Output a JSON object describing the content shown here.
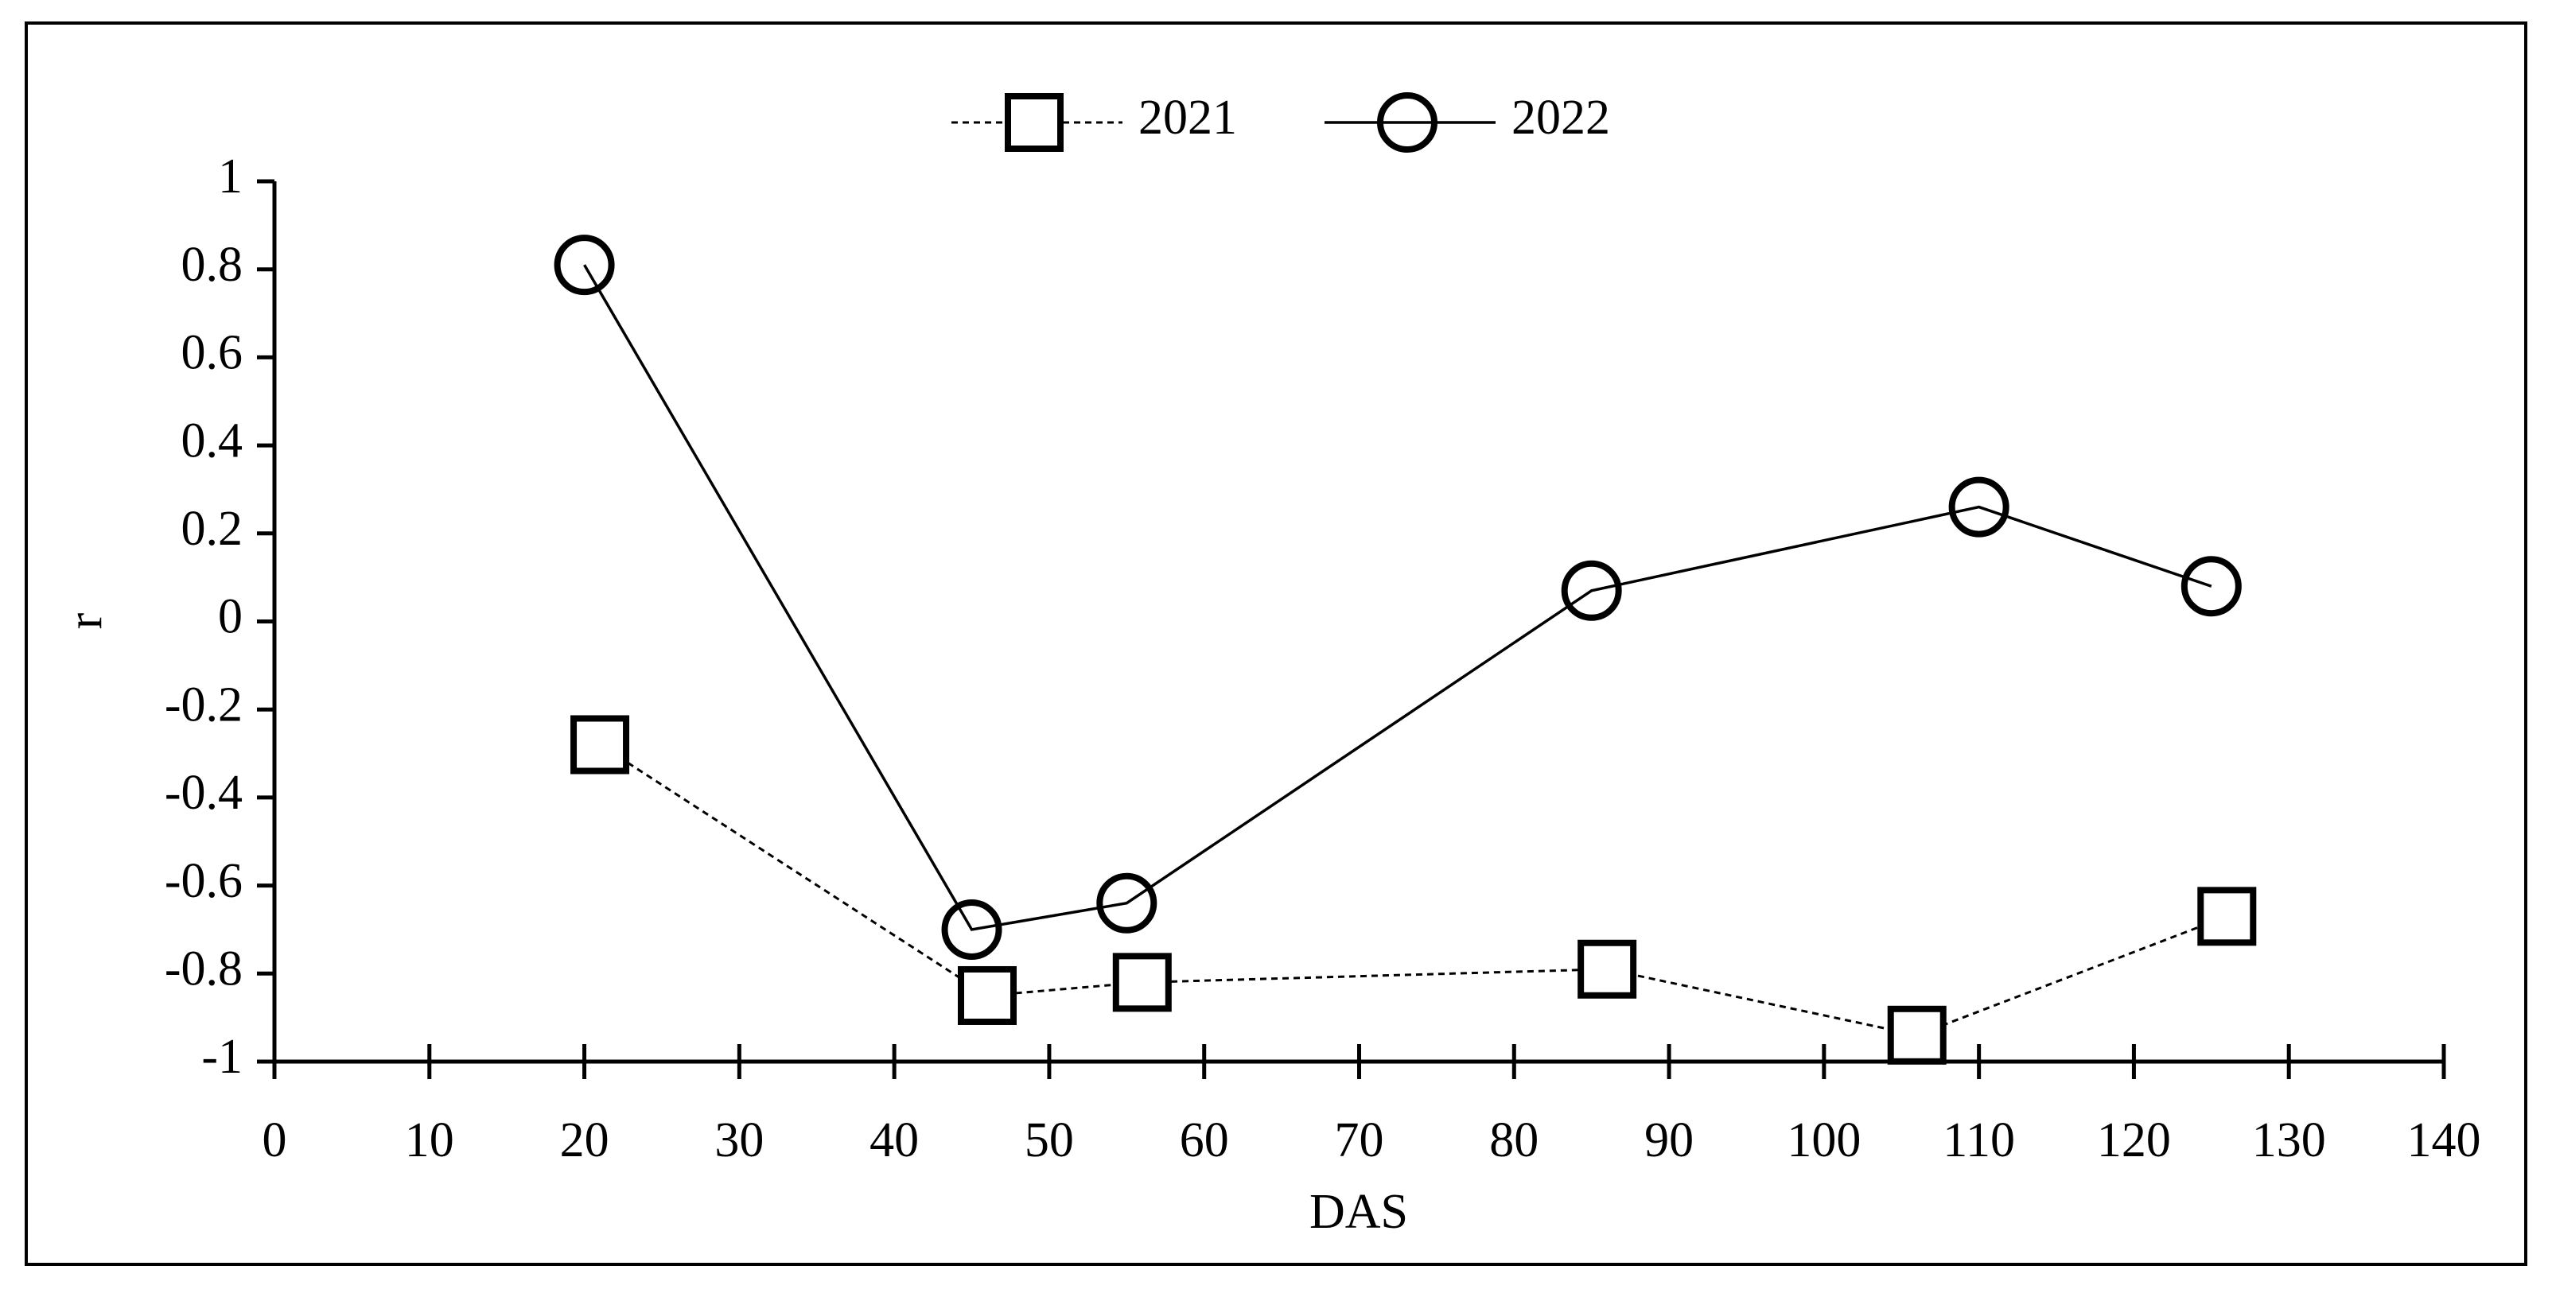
{
  "chart_data": {
    "type": "line",
    "xlabel": "DAS",
    "ylabel": "r",
    "xlim": [
      0,
      140
    ],
    "xticks": [
      0,
      10,
      20,
      30,
      40,
      50,
      60,
      70,
      80,
      90,
      100,
      110,
      120,
      130,
      140
    ],
    "ylim": [
      -1,
      1
    ],
    "yticks": [
      1,
      0.8,
      0.6,
      0.4,
      0.2,
      0,
      -0.2,
      -0.4,
      -0.6,
      -0.8,
      -1
    ],
    "grid": false,
    "legend": "top",
    "series": [
      {
        "name": "2021",
        "color": "#000000",
        "marker": "square",
        "line_style": "dashed",
        "x": [
          21,
          46,
          56,
          86,
          106,
          126
        ],
        "values": [
          -0.28,
          -0.85,
          -0.82,
          -0.79,
          -0.94,
          -0.67
        ]
      },
      {
        "name": "2022",
        "color": "#000000",
        "marker": "circle",
        "line_style": "solid",
        "x": [
          20,
          45,
          55,
          85,
          110,
          125
        ],
        "values": [
          0.81,
          -0.7,
          -0.64,
          0.07,
          0.26,
          0.08
        ]
      }
    ]
  }
}
